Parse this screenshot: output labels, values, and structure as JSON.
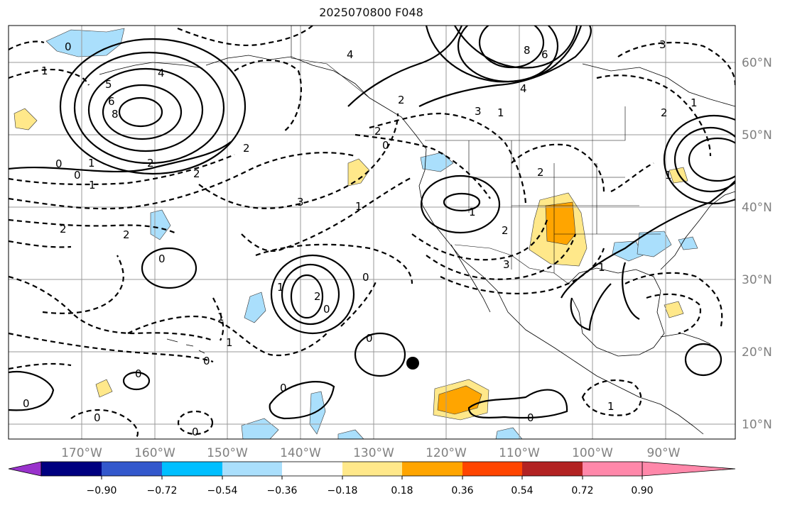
{
  "title": "2025070800 F048",
  "lon_ticks": [
    "170°W",
    "160°W",
    "150°W",
    "140°W",
    "130°W",
    "120°W",
    "110°W",
    "100°W",
    "90°W"
  ],
  "lat_ticks": [
    "60°N",
    "50°N",
    "40°N",
    "30°N",
    "20°N",
    "10°N"
  ],
  "colorbar": {
    "colors": [
      "#9932cc",
      "#000080",
      "#3358cc",
      "#00bfff",
      "#aadffc",
      "#ffffff",
      "#ffe88a",
      "#ffa500",
      "#ff4500",
      "#b22222",
      "#ff88aa"
    ],
    "tick_labels": [
      "−0.90",
      "−0.72",
      "−0.54",
      "−0.36",
      "−0.18",
      "0.18",
      "0.36",
      "0.54",
      "0.72",
      "0.90"
    ]
  },
  "contour_labels": {
    "l0a": "0",
    "l1a": "1",
    "l5a": "5",
    "l4a": "4",
    "l6a": "6",
    "l8a": "8",
    "l2a": "2",
    "l1b": "1",
    "l0b": "0",
    "l0c": "0",
    "l1c": "1",
    "l2b": "2",
    "l4b": "4",
    "l2c": "2",
    "l8b": "8",
    "l6b": "6",
    "l4c": "4",
    "l3a": "3",
    "l3b": "3",
    "l1d": "1",
    "l2d": "2",
    "l0d": "0",
    "l2e": "2",
    "l2f": "2",
    "l3c": "3",
    "l1e": "1",
    "l2g": "2",
    "l1f": "1",
    "l2h": "2",
    "l2i": "2",
    "l3d": "3",
    "l1g": "1",
    "l2j": "2",
    "l3e": "3",
    "l1h": "1",
    "l0e": "0",
    "l1i": "1",
    "l2k": "2",
    "l0f": "0",
    "l0g": "0",
    "l1j": "1",
    "l1k": "1",
    "l0h": "0",
    "l0i": "0",
    "l0j": "0",
    "l0k": "0",
    "l0l": "0",
    "l0m": "0",
    "l0n": "0",
    "l0o": "0",
    "l1l": "1",
    "l1m": "1"
  },
  "marker": "filled black circle"
}
